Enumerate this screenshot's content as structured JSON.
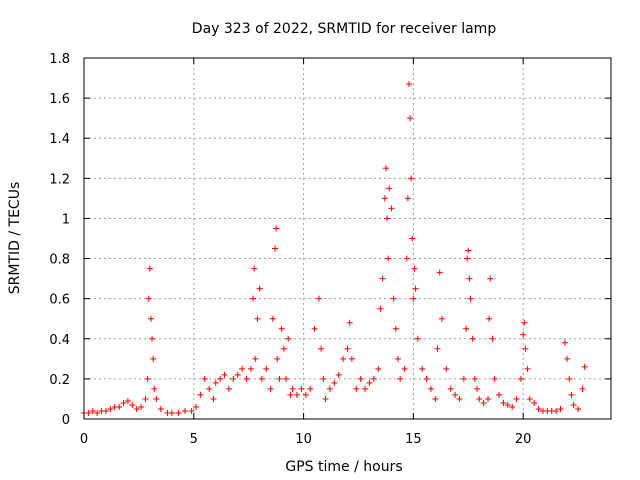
{
  "chart_data": {
    "type": "scatter",
    "title": "Day 323 of 2022, SRMTID for receiver lamp",
    "xlabel": "GPS time / hours",
    "ylabel": "SRMTID / TECUs",
    "xlim": [
      0,
      24
    ],
    "ylim": [
      0,
      1.8
    ],
    "xticks": [
      "0",
      "5",
      "10",
      "15",
      "20"
    ],
    "yticks": [
      "0",
      "0.2",
      "0.4",
      "0.6",
      "0.8",
      "1",
      "1.2",
      "1.4",
      "1.6",
      "1.8"
    ],
    "grid": true,
    "marker": "plus",
    "color": "#ff0000",
    "series": [
      {
        "name": "SRMTID",
        "x": [
          0.0,
          0.2,
          0.4,
          0.6,
          0.8,
          1.0,
          1.2,
          1.4,
          1.6,
          1.8,
          2.0,
          2.2,
          2.4,
          2.6,
          2.8,
          2.9,
          2.95,
          3.0,
          3.05,
          3.1,
          3.15,
          3.2,
          3.3,
          3.5,
          3.8,
          4.0,
          4.3,
          4.6,
          4.9,
          5.1,
          5.3,
          5.5,
          5.7,
          5.9,
          6.0,
          6.2,
          6.4,
          6.6,
          6.8,
          7.0,
          7.2,
          7.4,
          7.6,
          7.7,
          7.75,
          7.8,
          7.9,
          8.0,
          8.1,
          8.3,
          8.5,
          8.6,
          8.7,
          8.75,
          8.8,
          8.9,
          9.0,
          9.1,
          9.2,
          9.3,
          9.4,
          9.5,
          9.7,
          9.9,
          10.1,
          10.3,
          10.5,
          10.7,
          10.8,
          10.9,
          11.0,
          11.2,
          11.4,
          11.6,
          11.8,
          12.0,
          12.1,
          12.2,
          12.4,
          12.6,
          12.8,
          13.0,
          13.2,
          13.4,
          13.5,
          13.6,
          13.7,
          13.75,
          13.8,
          13.85,
          13.9,
          14.0,
          14.1,
          14.2,
          14.3,
          14.4,
          14.6,
          14.7,
          14.75,
          14.8,
          14.85,
          14.9,
          14.95,
          15.0,
          15.05,
          15.1,
          15.2,
          15.4,
          15.6,
          15.8,
          16.0,
          16.1,
          16.2,
          16.3,
          16.5,
          16.7,
          16.9,
          17.1,
          17.3,
          17.4,
          17.45,
          17.5,
          17.55,
          17.6,
          17.7,
          17.8,
          17.9,
          18.0,
          18.2,
          18.4,
          18.45,
          18.5,
          18.6,
          18.7,
          18.9,
          19.1,
          19.3,
          19.5,
          19.7,
          19.9,
          20.0,
          20.05,
          20.1,
          20.2,
          20.3,
          20.5,
          20.7,
          20.9,
          21.1,
          21.3,
          21.5,
          21.7,
          21.9,
          22.0,
          22.1,
          22.2,
          22.3,
          22.5,
          22.7,
          22.8
        ],
        "y": [
          0.03,
          0.03,
          0.04,
          0.03,
          0.04,
          0.04,
          0.05,
          0.06,
          0.06,
          0.08,
          0.09,
          0.07,
          0.05,
          0.06,
          0.1,
          0.2,
          0.6,
          0.75,
          0.5,
          0.4,
          0.3,
          0.15,
          0.1,
          0.05,
          0.03,
          0.03,
          0.03,
          0.04,
          0.04,
          0.06,
          0.12,
          0.2,
          0.15,
          0.1,
          0.18,
          0.2,
          0.22,
          0.15,
          0.2,
          0.22,
          0.25,
          0.2,
          0.25,
          0.6,
          0.75,
          0.3,
          0.5,
          0.65,
          0.2,
          0.25,
          0.15,
          0.5,
          0.85,
          0.95,
          0.3,
          0.2,
          0.45,
          0.35,
          0.2,
          0.4,
          0.12,
          0.15,
          0.12,
          0.15,
          0.12,
          0.15,
          0.45,
          0.6,
          0.35,
          0.2,
          0.1,
          0.15,
          0.18,
          0.22,
          0.3,
          0.35,
          0.48,
          0.3,
          0.15,
          0.2,
          0.15,
          0.18,
          0.2,
          0.25,
          0.55,
          0.7,
          1.1,
          1.25,
          1.0,
          0.8,
          1.15,
          1.05,
          0.6,
          0.45,
          0.3,
          0.2,
          0.25,
          0.8,
          1.1,
          1.67,
          1.5,
          1.2,
          0.9,
          0.6,
          0.75,
          0.65,
          0.4,
          0.25,
          0.2,
          0.15,
          0.1,
          0.35,
          0.73,
          0.5,
          0.25,
          0.15,
          0.12,
          0.1,
          0.2,
          0.45,
          0.8,
          0.84,
          0.7,
          0.6,
          0.4,
          0.2,
          0.15,
          0.1,
          0.08,
          0.1,
          0.5,
          0.7,
          0.4,
          0.2,
          0.12,
          0.08,
          0.07,
          0.06,
          0.1,
          0.2,
          0.42,
          0.48,
          0.35,
          0.25,
          0.1,
          0.08,
          0.05,
          0.04,
          0.04,
          0.04,
          0.04,
          0.05,
          0.38,
          0.3,
          0.2,
          0.12,
          0.07,
          0.05,
          0.15,
          0.26
        ]
      }
    ]
  }
}
